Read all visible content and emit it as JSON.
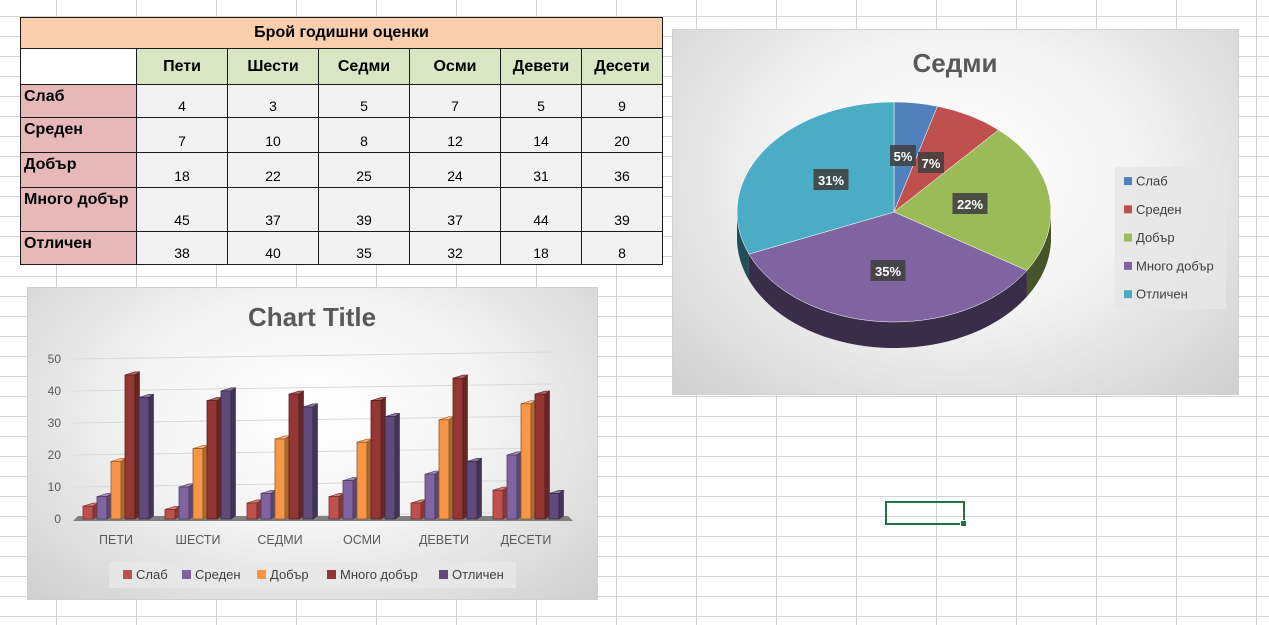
{
  "table": {
    "title": "Брой годишни оценки",
    "columns": [
      "Пети",
      "Шести",
      "Седми",
      "Осми",
      "Девети",
      "Десети"
    ],
    "rows": [
      {
        "label": "Слаб",
        "values": [
          "4",
          "3",
          "5",
          "7",
          "5",
          "9"
        ]
      },
      {
        "label": "Среден",
        "values": [
          "7",
          "10",
          "8",
          "12",
          "14",
          "20"
        ]
      },
      {
        "label": "Добър",
        "values": [
          "18",
          "22",
          "25",
          "24",
          "31",
          "36"
        ]
      },
      {
        "label": "Много добър",
        "values": [
          "45",
          "37",
          "39",
          "37",
          "44",
          "39"
        ]
      },
      {
        "label": "Отличен",
        "values": [
          "38",
          "40",
          "35",
          "32",
          "18",
          "8"
        ]
      }
    ]
  },
  "chart_data": [
    {
      "type": "bar",
      "title": "Chart Title",
      "categories": [
        "ПЕТИ",
        "ШЕСТИ",
        "СЕДМИ",
        "ОСМИ",
        "ДЕВЕТИ",
        "ДЕСЕТИ"
      ],
      "ylim": [
        0,
        50
      ],
      "yticks": [
        "0",
        "10",
        "20",
        "30",
        "40",
        "50"
      ],
      "grid": true,
      "legend_position": "bottom",
      "series": [
        {
          "name": "Слаб",
          "color": "#c0504d",
          "values": [
            4,
            3,
            5,
            7,
            5,
            9
          ]
        },
        {
          "name": "Среден",
          "color": "#8064a2",
          "values": [
            7,
            10,
            8,
            12,
            14,
            20
          ]
        },
        {
          "name": "Добър",
          "color": "#f79646",
          "values": [
            18,
            22,
            25,
            24,
            31,
            36
          ]
        },
        {
          "name": "Много добър",
          "color": "#943634",
          "values": [
            45,
            37,
            39,
            37,
            44,
            39
          ]
        },
        {
          "name": "Отличен",
          "color": "#604a7b",
          "values": [
            38,
            40,
            35,
            32,
            18,
            8
          ]
        }
      ]
    },
    {
      "type": "pie",
      "title": "Седми",
      "legend_position": "right",
      "categories": [
        "Слаб",
        "Среден",
        "Добър",
        "Много добър",
        "Отличен"
      ],
      "values": [
        5,
        8,
        25,
        39,
        35
      ],
      "data_labels": [
        "5%",
        "7%",
        "22%",
        "35%",
        "31%"
      ],
      "colors": [
        "#4f81bd",
        "#c0504d",
        "#9bbb59",
        "#8064a2",
        "#4bacc6"
      ]
    }
  ]
}
